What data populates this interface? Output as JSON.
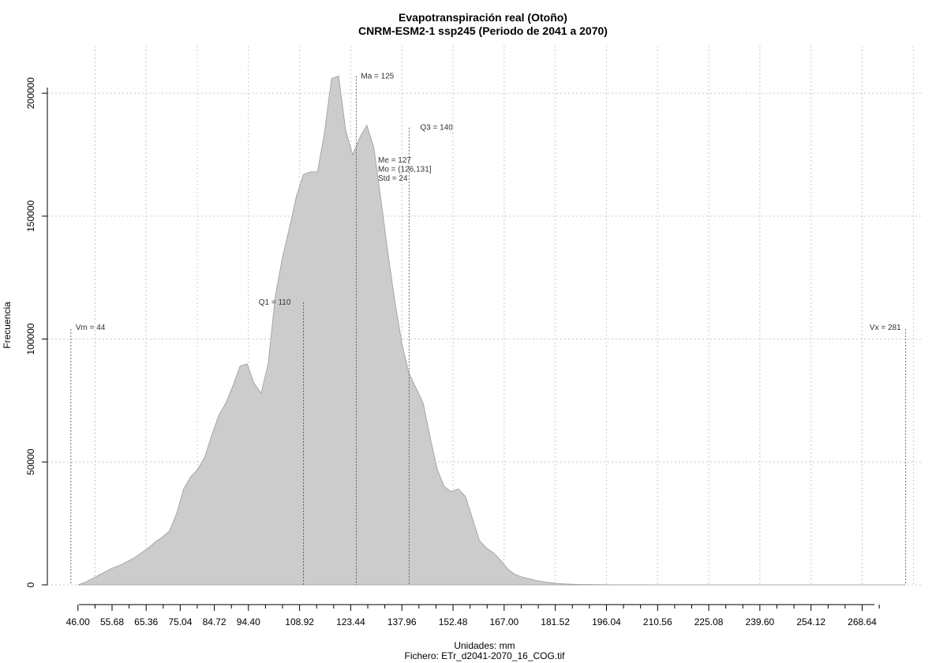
{
  "chart_data": {
    "type": "area",
    "title": "Evapotranspiración real (Otoño)",
    "subtitle": "CNRM-ESM2-1 ssp245 (Periodo de 2041 a 2070)",
    "xlabel": "Unidades: mm",
    "ylabel": "Frecuencia",
    "footer": "Fichero: ETr_d2041-2070_16_COG.tif",
    "xlim": [
      40.0,
      286.0
    ],
    "ylim": [
      0,
      210000
    ],
    "x_ticks": [
      46.0,
      55.68,
      65.36,
      75.04,
      84.72,
      94.4,
      108.92,
      123.44,
      137.96,
      152.48,
      167.0,
      181.52,
      196.04,
      210.56,
      225.08,
      239.6,
      254.12,
      268.64
    ],
    "x_tick_labels": [
      "46.00",
      "55.68",
      "65.36",
      "75.04",
      "84.72",
      "94.40",
      "108.92",
      "123.44",
      "137.96",
      "152.48",
      "167.00",
      "181.52",
      "196.04",
      "210.56",
      "225.08",
      "239.60",
      "254.12",
      "268.64"
    ],
    "x_minor_ticks": [
      50.84,
      60.52,
      70.2,
      79.88,
      89.56,
      99.24,
      104.08,
      113.76,
      118.6,
      128.28,
      133.12,
      142.8,
      147.64,
      157.32,
      162.16,
      171.84,
      176.68,
      186.36,
      191.2,
      200.88,
      205.72,
      215.4,
      220.24,
      229.92,
      234.76,
      244.44,
      249.28,
      258.96,
      263.8,
      273.48
    ],
    "y_ticks": [
      0,
      50000,
      100000,
      150000,
      200000
    ],
    "y_tick_labels": [
      "0",
      "50000",
      "100000",
      "150000",
      "200000"
    ],
    "x_grid": [
      50.84,
      65.36,
      79.88,
      94.4,
      108.92,
      123.44,
      137.96,
      152.48,
      167.0,
      181.52,
      196.04,
      210.56,
      225.08,
      239.6,
      254.12,
      268.64,
      283.16
    ],
    "grid": true,
    "fill_color": "#cccccc",
    "series": [
      {
        "x": [
          46,
          48,
          50,
          52,
          54,
          56,
          58,
          60,
          62,
          64,
          66,
          68,
          70,
          72,
          74,
          76,
          78,
          80,
          82,
          84,
          86,
          88,
          90,
          92,
          94,
          96,
          98,
          100,
          102,
          104,
          106,
          108,
          110,
          112,
          114,
          116,
          118,
          120,
          122,
          124,
          126,
          128,
          130,
          132,
          134,
          136,
          138,
          140,
          142,
          144,
          146,
          148,
          150,
          152,
          154,
          156,
          158,
          160,
          162,
          164,
          166,
          168,
          170,
          172,
          174,
          176,
          178,
          180,
          182,
          184,
          186,
          188,
          190,
          195,
          200,
          205,
          210,
          220,
          240,
          260,
          281
        ],
        "y": [
          0,
          1000,
          2500,
          4000,
          5500,
          7000,
          8000,
          9500,
          11000,
          13000,
          15000,
          17500,
          19500,
          22000,
          29000,
          39000,
          44000,
          47000,
          52000,
          61000,
          69000,
          74000,
          81000,
          89000,
          90000,
          82000,
          78000,
          90000,
          117000,
          133000,
          145000,
          158000,
          167000,
          168000,
          168000,
          184000,
          206000,
          207000,
          185000,
          175000,
          182000,
          187000,
          178000,
          157000,
          135000,
          115000,
          98000,
          86000,
          80000,
          74000,
          60000,
          47000,
          40000,
          38000,
          39000,
          36000,
          27000,
          18000,
          15000,
          13000,
          10000,
          6500,
          4300,
          3200,
          2500,
          1800,
          1300,
          900,
          600,
          400,
          300,
          200,
          150,
          80,
          40,
          20,
          10,
          5,
          0,
          0,
          0
        ]
      }
    ],
    "annotations": [
      {
        "label": "Vm = 44",
        "x": 44,
        "y_top": 104000
      },
      {
        "label": "Q1 = 110",
        "x": 110,
        "y_top": 115000
      },
      {
        "label": "Ma = 125",
        "x": 125,
        "y_top": 207000
      },
      {
        "label": "Q3 = 140",
        "x": 140,
        "y_top": 186000
      },
      {
        "label": "Vx = 281",
        "x": 281,
        "y_top": 104000
      }
    ],
    "stats": [
      "Me = 127",
      "Mo = (126,131]",
      "Std = 24"
    ]
  }
}
